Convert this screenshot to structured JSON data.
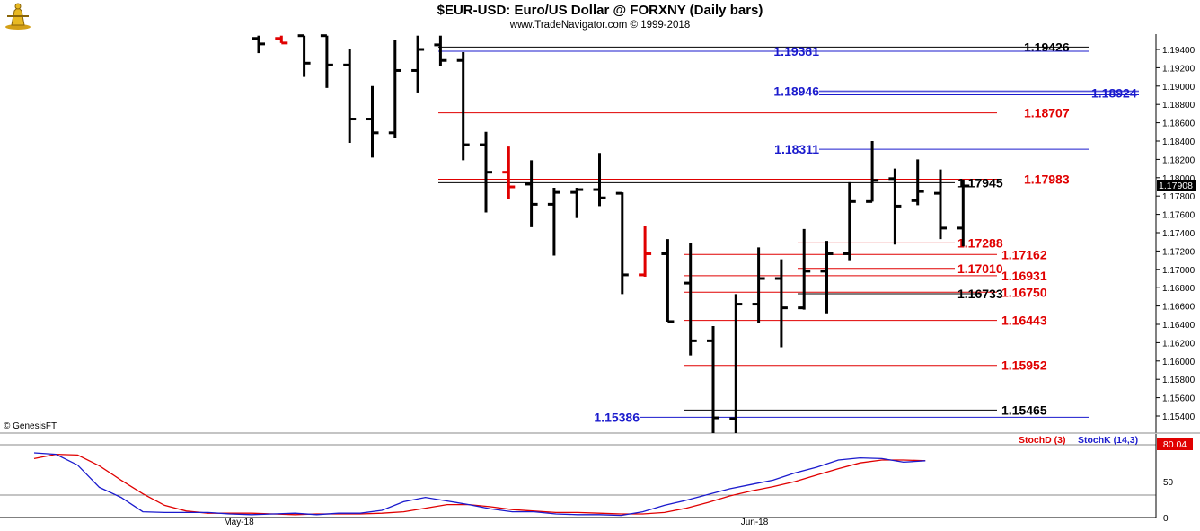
{
  "header": {
    "title": "$EUR-USD:  Euro/US Dollar @ FORXNY  (Daily bars)",
    "subtitle": "www.TradeNavigator.com © 1999-2018",
    "copyright": "© GenesisFT"
  },
  "chart_data": [
    {
      "type": "ohlc",
      "title": "$EUR-USD:  Euro/US Dollar @ FORXNY  (Daily bars)",
      "ylim": [
        1.153,
        1.1955
      ],
      "y_ticks": [
        "1.19400",
        "1.19200",
        "1.19000",
        "1.18800",
        "1.18600",
        "1.18400",
        "1.18200",
        "1.18000",
        "1.17800",
        "1.17600",
        "1.17400",
        "1.17200",
        "1.17000",
        "1.16800",
        "1.16600",
        "1.16400",
        "1.16200",
        "1.16000",
        "1.15800",
        "1.15600",
        "1.15400"
      ],
      "last_price": "1.17908",
      "x_labels": [
        "May-18",
        "Jun-18"
      ],
      "bars": [
        {
          "o": 1.1952,
          "h": 1.1955,
          "l": 1.1936,
          "c": 1.1946,
          "color": "#000000"
        },
        {
          "o": 1.1952,
          "h": 1.1955,
          "l": 1.1947,
          "c": 1.1947,
          "color": "#e00000"
        },
        {
          "o": 1.1955,
          "h": 1.1955,
          "l": 1.191,
          "c": 1.1925,
          "color": "#000000"
        },
        {
          "o": 1.1955,
          "h": 1.1955,
          "l": 1.1898,
          "c": 1.1923,
          "color": "#000000"
        },
        {
          "o": 1.1923,
          "h": 1.194,
          "l": 1.1838,
          "c": 1.1864,
          "color": "#000000"
        },
        {
          "o": 1.1864,
          "h": 1.19,
          "l": 1.1822,
          "c": 1.1849,
          "color": "#000000"
        },
        {
          "o": 1.1849,
          "h": 1.195,
          "l": 1.1843,
          "c": 1.1917,
          "color": "#000000"
        },
        {
          "o": 1.1917,
          "h": 1.1955,
          "l": 1.1893,
          "c": 1.194,
          "color": "#000000"
        },
        {
          "o": 1.1945,
          "h": 1.1955,
          "l": 1.1922,
          "c": 1.1928,
          "color": "#000000"
        },
        {
          "o": 1.1928,
          "h": 1.1937,
          "l": 1.1819,
          "c": 1.1836,
          "color": "#000000"
        },
        {
          "o": 1.1836,
          "h": 1.185,
          "l": 1.1762,
          "c": 1.1806,
          "color": "#000000"
        },
        {
          "o": 1.1806,
          "h": 1.1834,
          "l": 1.1777,
          "c": 1.179,
          "color": "#e00000"
        },
        {
          "o": 1.1793,
          "h": 1.1819,
          "l": 1.1746,
          "c": 1.1771,
          "color": "#000000"
        },
        {
          "o": 1.1771,
          "h": 1.1789,
          "l": 1.1715,
          "c": 1.1784,
          "color": "#000000"
        },
        {
          "o": 1.1784,
          "h": 1.1789,
          "l": 1.1756,
          "c": 1.1787,
          "color": "#000000"
        },
        {
          "o": 1.1787,
          "h": 1.1827,
          "l": 1.1769,
          "c": 1.1778,
          "color": "#000000"
        },
        {
          "o": 1.1783,
          "h": 1.1784,
          "l": 1.1673,
          "c": 1.1694,
          "color": "#000000"
        },
        {
          "o": 1.1694,
          "h": 1.1747,
          "l": 1.1692,
          "c": 1.1717,
          "color": "#e00000"
        },
        {
          "o": 1.1717,
          "h": 1.1733,
          "l": 1.1643,
          "c": 1.1643,
          "color": "#000000"
        },
        {
          "o": 1.1685,
          "h": 1.1729,
          "l": 1.1606,
          "c": 1.1622,
          "color": "#000000"
        },
        {
          "o": 1.1622,
          "h": 1.1638,
          "l": 1.151,
          "c": 1.1538,
          "color": "#000000"
        },
        {
          "o": 1.1537,
          "h": 1.1673,
          "l": 1.151,
          "c": 1.1662,
          "color": "#000000"
        },
        {
          "o": 1.1662,
          "h": 1.1724,
          "l": 1.1641,
          "c": 1.169,
          "color": "#000000"
        },
        {
          "o": 1.169,
          "h": 1.1711,
          "l": 1.1615,
          "c": 1.1658,
          "color": "#000000"
        },
        {
          "o": 1.1658,
          "h": 1.1744,
          "l": 1.1656,
          "c": 1.1698,
          "color": "#000000"
        },
        {
          "o": 1.1698,
          "h": 1.1731,
          "l": 1.1652,
          "c": 1.1717,
          "color": "#000000"
        },
        {
          "o": 1.1717,
          "h": 1.1795,
          "l": 1.171,
          "c": 1.1774,
          "color": "#000000"
        },
        {
          "o": 1.1774,
          "h": 1.184,
          "l": 1.1774,
          "c": 1.1797,
          "color": "#000000"
        },
        {
          "o": 1.1799,
          "h": 1.181,
          "l": 1.1727,
          "c": 1.1769,
          "color": "#000000"
        },
        {
          "o": 1.1775,
          "h": 1.182,
          "l": 1.177,
          "c": 1.1785,
          "color": "#000000"
        },
        {
          "o": 1.1783,
          "h": 1.1809,
          "l": 1.1733,
          "c": 1.1745,
          "color": "#000000"
        },
        {
          "o": 1.1745,
          "h": 1.1798,
          "l": 1.1725,
          "c": 1.1791,
          "color": "#000000"
        }
      ],
      "levels": [
        {
          "value": 1.19426,
          "label": "1.19426",
          "color": "#000000",
          "side": "right"
        },
        {
          "value": 1.19381,
          "label": "1.19381",
          "color": "#1a1acd",
          "side": "left"
        },
        {
          "value": 1.18946,
          "label": "1.18946",
          "color": "#1a1acd",
          "side": "left"
        },
        {
          "value": 1.18924,
          "label": "1.18924",
          "color": "#1a1acd",
          "side": "far"
        },
        {
          "value": 1.18707,
          "label": "1.18707",
          "color": "#e00000",
          "side": "right"
        },
        {
          "value": 1.18311,
          "label": "1.18311",
          "color": "#1a1acd",
          "side": "left"
        },
        {
          "value": 1.17983,
          "label": "1.17983",
          "color": "#e00000",
          "side": "right"
        },
        {
          "value": 1.17945,
          "label": "1.17945",
          "color": "#000000",
          "side": "right"
        },
        {
          "value": 1.17288,
          "label": "1.17288",
          "color": "#e00000",
          "side": "right"
        },
        {
          "value": 1.17162,
          "label": "1.17162",
          "color": "#e00000",
          "side": "right"
        },
        {
          "value": 1.1701,
          "label": "1.17010",
          "color": "#e00000",
          "side": "right"
        },
        {
          "value": 1.16931,
          "label": "1.16931",
          "color": "#e00000",
          "side": "right"
        },
        {
          "value": 1.1675,
          "label": "1.16750",
          "color": "#e00000",
          "side": "right"
        },
        {
          "value": 1.16733,
          "label": "1.16733",
          "color": "#000000",
          "side": "right"
        },
        {
          "value": 1.16443,
          "label": "1.16443",
          "color": "#e00000",
          "side": "right"
        },
        {
          "value": 1.15952,
          "label": "1.15952",
          "color": "#e00000",
          "side": "right"
        },
        {
          "value": 1.15465,
          "label": "1.15465",
          "color": "#000000",
          "side": "right"
        },
        {
          "value": 1.15386,
          "label": "1.15386",
          "color": "#1a1acd",
          "side": "left"
        }
      ]
    },
    {
      "type": "line",
      "ylim": [
        0,
        100
      ],
      "y_ticks": [
        "50",
        "0"
      ],
      "last_value": "80.04",
      "series": [
        {
          "name": "StochD (3)",
          "color": "#e00000",
          "values": [
            82,
            88,
            87,
            72,
            52,
            33,
            17,
            9,
            6,
            6,
            6,
            5,
            4,
            5,
            5,
            5,
            6,
            8,
            13,
            18,
            18,
            15,
            11,
            9,
            7,
            7,
            6,
            5,
            5,
            7,
            13,
            21,
            30,
            37,
            43,
            50,
            59,
            68,
            76,
            80,
            80,
            79
          ]
        },
        {
          "name": "StochK (14,3)",
          "color": "#1a1acd",
          "values": [
            90,
            88,
            73,
            42,
            28,
            8,
            7,
            7,
            7,
            5,
            4,
            5,
            6,
            4,
            6,
            6,
            10,
            22,
            28,
            23,
            18,
            12,
            8,
            8,
            5,
            4,
            4,
            3,
            8,
            17,
            24,
            32,
            40,
            46,
            52,
            62,
            70,
            80,
            83,
            82,
            77,
            79
          ]
        }
      ]
    }
  ]
}
